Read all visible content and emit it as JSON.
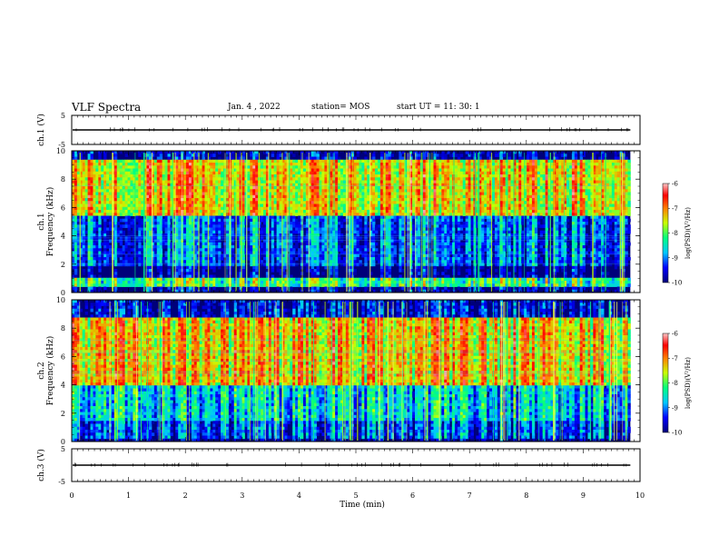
{
  "header": {
    "title": "VLF Spectra",
    "date": "Jan. 4 , 2022",
    "station": "station= MOS",
    "start": "start UT =  11: 30: 1"
  },
  "colors": {
    "scale": [
      "#00007a",
      "#0000ff",
      "#00c8ff",
      "#00ff80",
      "#c8ff00",
      "#ff8000",
      "#ff0000",
      "#ffc8c8"
    ]
  },
  "chart_data": [
    {
      "type": "line",
      "name": "ch.1 waveform",
      "ylabel": "ch.1 (V)",
      "ylim": [
        -5,
        5
      ],
      "yticks": [
        "5",
        "-5"
      ],
      "trace_level": 0
    },
    {
      "type": "heatmap",
      "ylabel_line1": "ch.1",
      "ylabel_line2": "Frequency (kHz)",
      "ylim": [
        0,
        10
      ],
      "yticks": [
        "0",
        "2",
        "4",
        "6",
        "8",
        "10"
      ],
      "colorbar": {
        "label": "log(PSD)(V²/Hz)",
        "range": [
          -10,
          -6
        ],
        "ticks": [
          "-6",
          "-7",
          "-8",
          "-9",
          "-10"
        ]
      },
      "bands": [
        {
          "f_range": [
            0,
            0.4
          ],
          "level": -9.7,
          "note": "dark floor"
        },
        {
          "f_range": [
            0.4,
            1.0
          ],
          "level": -8.0
        },
        {
          "f_range": [
            1.0,
            1.8
          ],
          "level": -9.8,
          "note": "dark gap"
        },
        {
          "f_range": [
            1.8,
            5.5
          ],
          "level": -9.0
        },
        {
          "f_range": [
            5.5,
            9.3
          ],
          "level": -7.2,
          "note": "peak emission"
        },
        {
          "f_range": [
            9.3,
            10
          ],
          "level": -9.6
        }
      ]
    },
    {
      "type": "heatmap",
      "ylabel_line1": "ch.2",
      "ylabel_line2": "Frequency (kHz)",
      "ylim": [
        0,
        10
      ],
      "yticks": [
        "0",
        "2",
        "4",
        "6",
        "8",
        "10"
      ],
      "colorbar": {
        "label": "log(PSD)(V²/Hz)",
        "range": [
          -10,
          -6
        ],
        "ticks": [
          "-6",
          "-7",
          "-8",
          "-9",
          "-10"
        ]
      },
      "bands": [
        {
          "f_range": [
            0,
            0.2
          ],
          "level": -9.9,
          "note": "dark floor"
        },
        {
          "f_range": [
            0.2,
            1.5
          ],
          "level": -9.2
        },
        {
          "f_range": [
            1.5,
            4.0
          ],
          "level": -8.6
        },
        {
          "f_range": [
            4.0,
            8.8
          ],
          "level": -7.2,
          "note": "peak emission"
        },
        {
          "f_range": [
            8.8,
            10
          ],
          "level": -9.6
        }
      ]
    },
    {
      "type": "line",
      "name": "ch.3 waveform",
      "ylabel": "ch.3 (V)",
      "ylim": [
        -5,
        5
      ],
      "yticks": [
        "5",
        "-5"
      ],
      "trace_level": 0
    }
  ],
  "xaxis": {
    "label": "Time (min)",
    "xlim": [
      0,
      10
    ],
    "ticks": [
      "0",
      "1",
      "2",
      "3",
      "4",
      "5",
      "6",
      "7",
      "8",
      "9",
      "10"
    ],
    "data_end": 9.83
  }
}
